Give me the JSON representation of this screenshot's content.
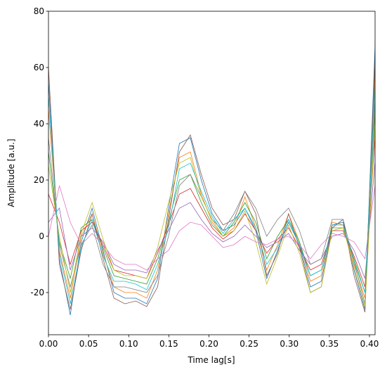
{
  "chart_data": {
    "type": "line",
    "x_label": "Time lag[s]",
    "y_label": "Amplitude [a.u.]",
    "x": [
      0,
      0.0136,
      0.0272,
      0.0408,
      0.0544,
      0.068,
      0.0816,
      0.0952,
      0.1088,
      0.1224,
      0.136,
      0.1496,
      0.1632,
      0.1768,
      0.1904,
      0.204,
      0.2176,
      0.2312,
      0.2448,
      0.2584,
      0.272,
      0.2856,
      0.2992,
      0.3128,
      0.3264,
      0.34,
      0.3536,
      0.3672,
      0.3808,
      0.3944,
      0.408
    ],
    "xlim": [
      0,
      0.407
    ],
    "ylim": [
      -35,
      80
    ],
    "xticks": [
      {
        "value": 0,
        "label": "0.00"
      },
      {
        "value": 0.05,
        "label": "0.05"
      },
      {
        "value": 0.1,
        "label": "0.10"
      },
      {
        "value": 0.15,
        "label": "0.15"
      },
      {
        "value": 0.2,
        "label": "0.20"
      },
      {
        "value": 0.25,
        "label": "0.25"
      },
      {
        "value": 0.3,
        "label": "0.30"
      },
      {
        "value": 0.35,
        "label": "0.35"
      },
      {
        "value": 0.4,
        "label": "0.40"
      }
    ],
    "yticks": [
      -20,
      0,
      20,
      40,
      60,
      80
    ],
    "grid": false,
    "series": [
      {
        "color": "#1f77b4",
        "values": [
          55,
          -8,
          -28,
          -2,
          10,
          -5,
          -20,
          -22,
          -22,
          -24,
          -15,
          10,
          33,
          35,
          20,
          8,
          2,
          4,
          10,
          2,
          -15,
          -5,
          5,
          -3,
          -18,
          -16,
          4,
          5,
          -12,
          -26,
          75
        ]
      },
      {
        "color": "#ff7f0e",
        "values": [
          45,
          -5,
          -22,
          0,
          8,
          -6,
          -18,
          -20,
          -20,
          -22,
          -12,
          8,
          28,
          30,
          15,
          5,
          0,
          3,
          14,
          3,
          -12,
          -3,
          8,
          -2,
          -16,
          -14,
          5,
          4,
          -10,
          -22,
          65
        ]
      },
      {
        "color": "#2ca02c",
        "values": [
          30,
          -2,
          -15,
          3,
          6,
          -4,
          -14,
          -15,
          -16,
          -17,
          -8,
          5,
          20,
          22,
          12,
          4,
          0,
          5,
          12,
          5,
          -8,
          0,
          6,
          -2,
          -14,
          -12,
          3,
          3,
          -8,
          -20,
          50
        ]
      },
      {
        "color": "#d62728",
        "values": [
          15,
          5,
          -10,
          2,
          5,
          -3,
          -12,
          -13,
          -14,
          -15,
          -6,
          4,
          15,
          17,
          10,
          3,
          -1,
          2,
          8,
          2,
          -6,
          -1,
          3,
          -4,
          -12,
          -10,
          2,
          2,
          -7,
          -18,
          40
        ]
      },
      {
        "color": "#9467bd",
        "values": [
          5,
          10,
          -12,
          0,
          3,
          -2,
          -10,
          -12,
          -12,
          -13,
          -5,
          2,
          10,
          12,
          6,
          1,
          -2,
          0,
          4,
          0,
          -4,
          -2,
          1,
          -5,
          -10,
          -8,
          0,
          1,
          -5,
          -15,
          30
        ]
      },
      {
        "color": "#8c564b",
        "values": [
          60,
          -10,
          -26,
          -5,
          8,
          -8,
          -22,
          -24,
          -23,
          -25,
          -18,
          6,
          30,
          36,
          22,
          10,
          4,
          6,
          16,
          8,
          -14,
          -6,
          8,
          -4,
          -20,
          -18,
          3,
          6,
          -14,
          -27,
          70
        ]
      },
      {
        "color": "#e377c2",
        "values": [
          0,
          18,
          5,
          -3,
          1,
          -3,
          -8,
          -10,
          -10,
          -12,
          -8,
          -5,
          2,
          5,
          4,
          0,
          -4,
          -3,
          0,
          -2,
          -3,
          -1,
          0,
          -3,
          -8,
          -3,
          1,
          0,
          -2,
          -8,
          20
        ]
      },
      {
        "color": "#7f7f7f",
        "values": [
          35,
          -3,
          -18,
          -3,
          4,
          -10,
          -18,
          -18,
          -19,
          -20,
          -14,
          0,
          18,
          22,
          14,
          6,
          2,
          8,
          16,
          10,
          0,
          6,
          10,
          2,
          -10,
          -8,
          6,
          6,
          -9,
          -24,
          55
        ]
      },
      {
        "color": "#bcbd22",
        "values": [
          25,
          0,
          -20,
          1,
          12,
          -1,
          -12,
          -14,
          -14,
          -15,
          -4,
          12,
          26,
          28,
          14,
          6,
          0,
          2,
          9,
          -2,
          -17,
          -7,
          4,
          -6,
          -20,
          -18,
          2,
          3,
          -11,
          -25,
          45
        ]
      },
      {
        "color": "#17becf",
        "values": [
          50,
          -6,
          -24,
          -4,
          6,
          -7,
          -16,
          -16,
          -17,
          -19,
          -10,
          3,
          24,
          26,
          16,
          7,
          1,
          6,
          10,
          3,
          -10,
          -4,
          6,
          -3,
          -14,
          -12,
          4,
          4,
          -9,
          -20,
          60
        ]
      }
    ]
  }
}
